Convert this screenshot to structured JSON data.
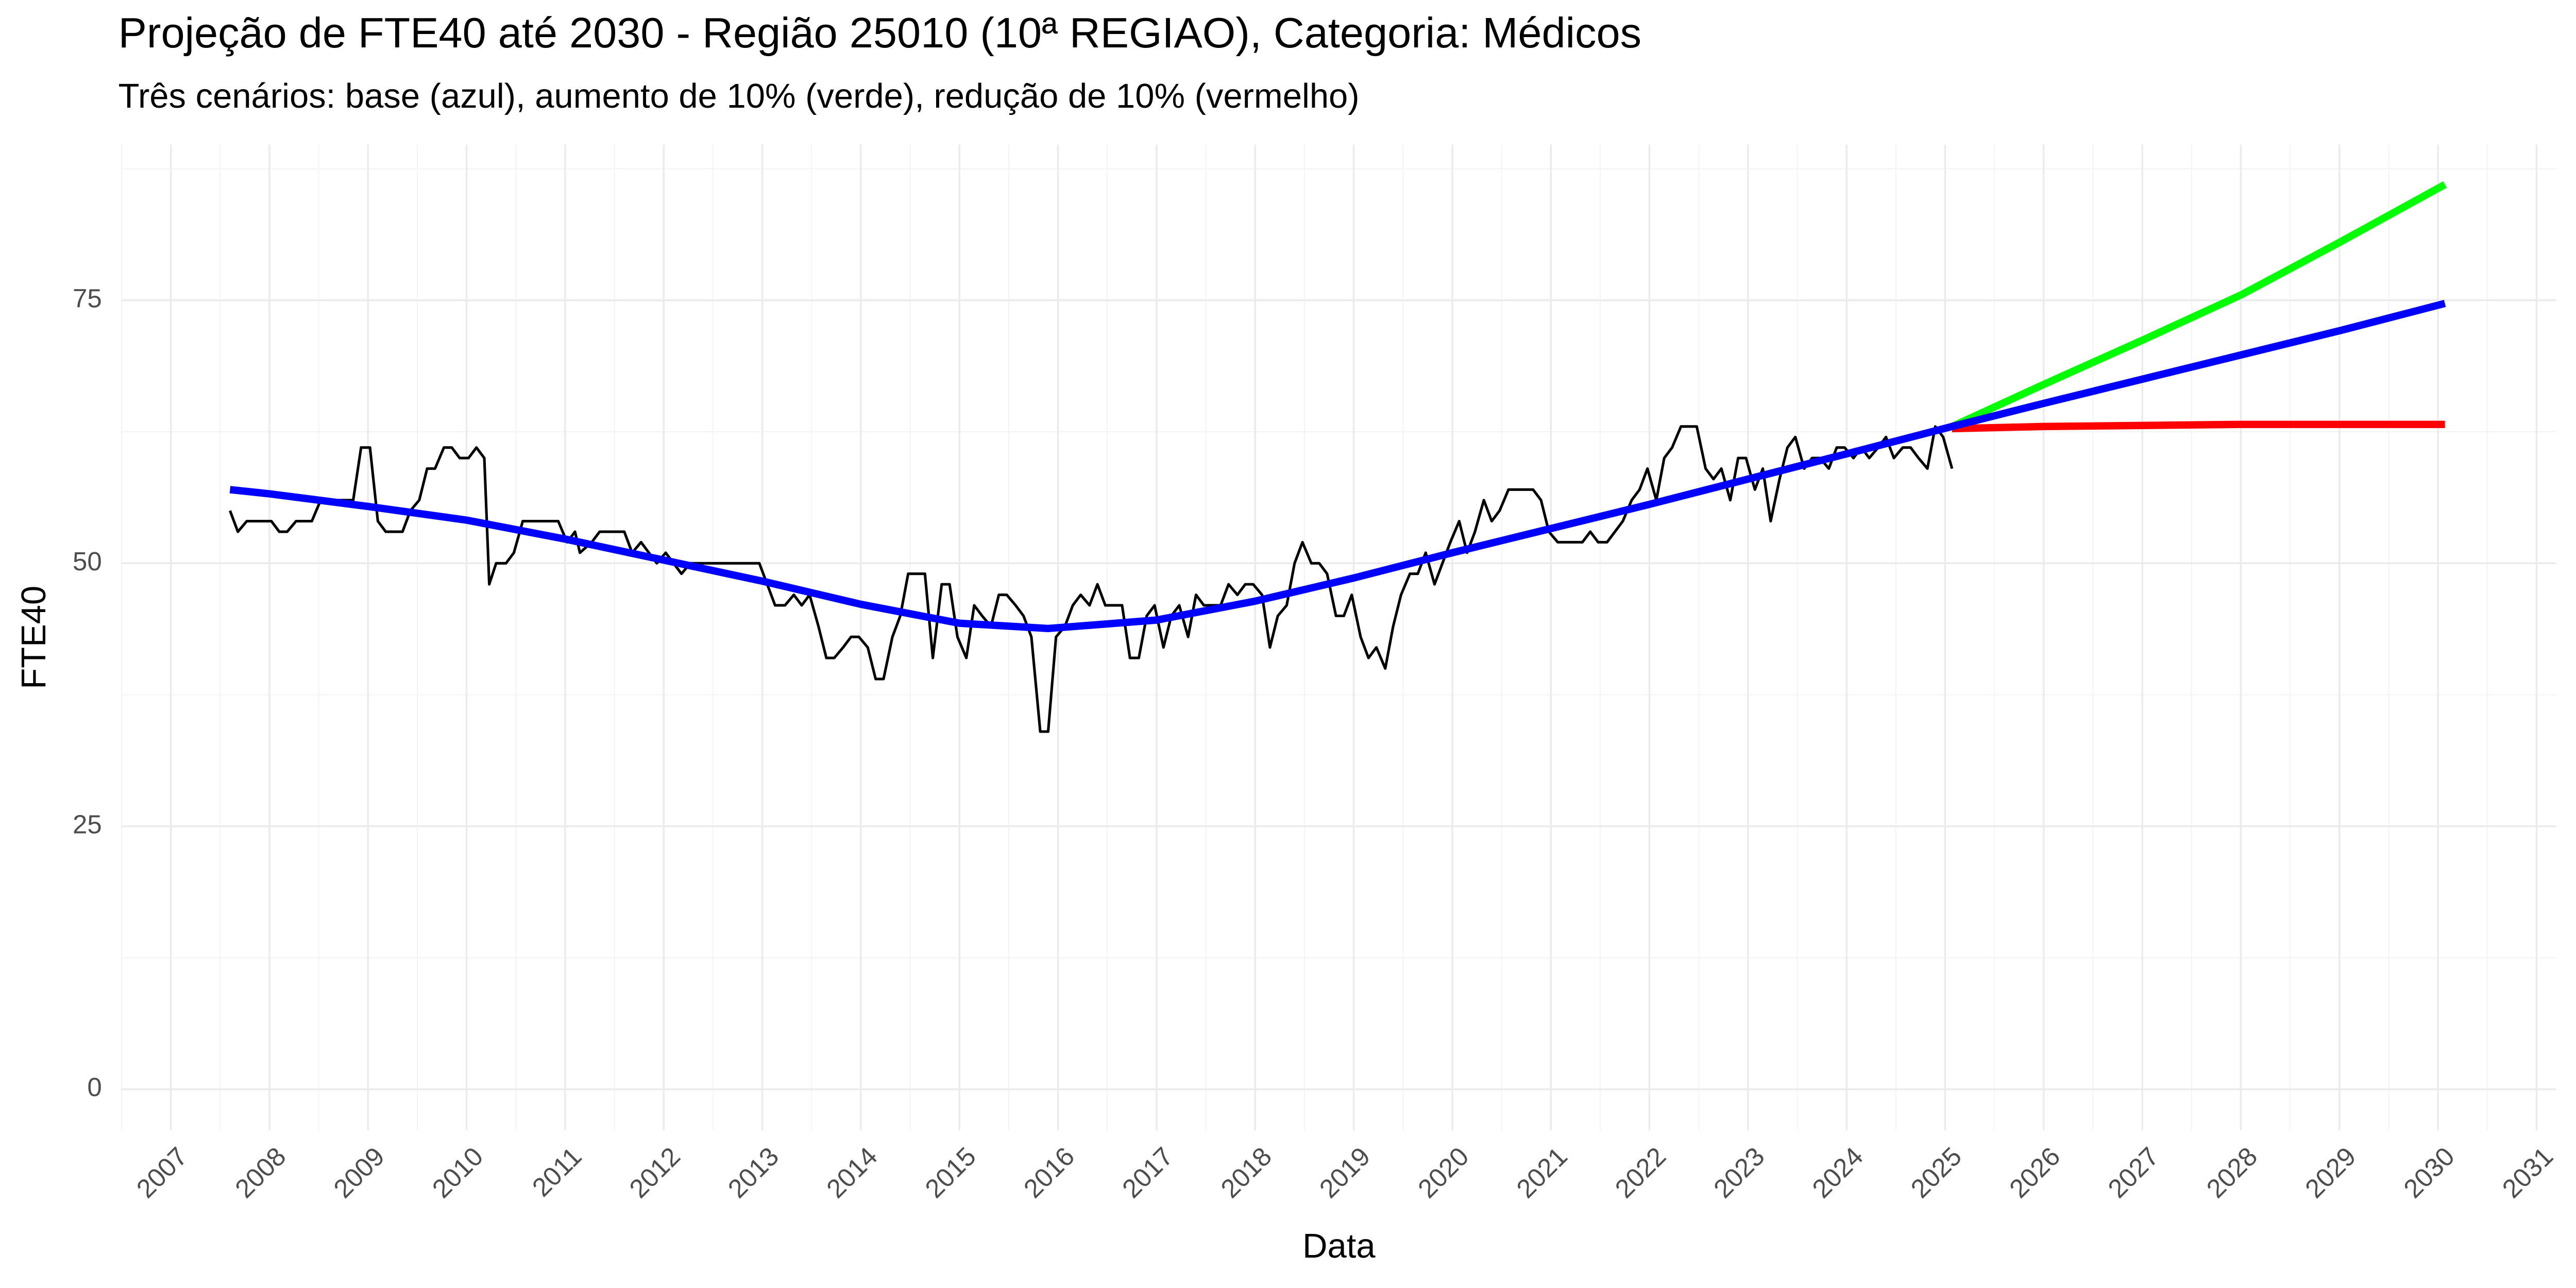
{
  "chart_data": {
    "type": "line",
    "title": "Projeção de FTE40 até 2030 - Região 25010 (10ª REGIAO), Categoria: Médicos",
    "subtitle": "Três cenários: base (azul), aumento de 10% (verde), redução de 10% (vermelho)",
    "x_label": "Data",
    "y_label": "FTE40",
    "xlim": [
      2006.5,
      2031.2
    ],
    "xticks": [
      2007,
      2008,
      2009,
      2010,
      2011,
      2012,
      2013,
      2014,
      2015,
      2016,
      2017,
      2018,
      2019,
      2020,
      2021,
      2022,
      2023,
      2024,
      2025,
      2026,
      2027,
      2028,
      2029,
      2030,
      2031
    ],
    "ylim": [
      -3.9,
      89.8
    ],
    "yticks": [
      0,
      25,
      50,
      75
    ],
    "grid": true,
    "series": [
      {
        "color": "#000000",
        "x": [
          2007.6,
          2007.68,
          2007.77,
          2007.85,
          2008.02,
          2008.1,
          2008.18,
          2008.27,
          2008.43,
          2008.52,
          2008.68,
          2008.85,
          2008.93,
          2009.02,
          2009.1,
          2009.18,
          2009.35,
          2009.43,
          2009.52,
          2009.6,
          2009.68,
          2009.77,
          2009.85,
          2009.93,
          2010.02,
          2010.1,
          2010.18,
          2010.23,
          2010.3,
          2010.4,
          2010.48,
          2010.57,
          2010.93,
          2011.02,
          2011.1,
          2011.15,
          2011.27,
          2011.35,
          2011.6,
          2011.68,
          2011.77,
          2011.85,
          2011.93,
          2012.02,
          2012.1,
          2012.18,
          2012.27,
          2012.97,
          2013.05,
          2013.13,
          2013.23,
          2013.32,
          2013.4,
          2013.48,
          2013.57,
          2013.65,
          2013.73,
          2013.82,
          2013.9,
          2013.98,
          2014.07,
          2014.15,
          2014.23,
          2014.32,
          2014.4,
          2014.48,
          2014.65,
          2014.73,
          2014.82,
          2014.9,
          2014.98,
          2015.07,
          2015.15,
          2015.23,
          2015.32,
          2015.4,
          2015.48,
          2015.57,
          2015.65,
          2015.73,
          2015.82,
          2015.9,
          2015.98,
          2016.07,
          2016.15,
          2016.23,
          2016.32,
          2016.4,
          2016.48,
          2016.65,
          2016.73,
          2016.82,
          2016.9,
          2016.98,
          2017.07,
          2017.15,
          2017.23,
          2017.32,
          2017.4,
          2017.48,
          2017.57,
          2017.65,
          2017.73,
          2017.82,
          2017.9,
          2017.98,
          2018.07,
          2018.15,
          2018.23,
          2018.32,
          2018.4,
          2018.48,
          2018.57,
          2018.65,
          2018.73,
          2018.82,
          2018.9,
          2018.98,
          2019.07,
          2019.15,
          2019.23,
          2019.32,
          2019.4,
          2019.48,
          2019.57,
          2019.65,
          2019.73,
          2019.82,
          2019.9,
          2019.98,
          2020.07,
          2020.15,
          2020.23,
          2020.32,
          2020.4,
          2020.48,
          2020.57,
          2020.82,
          2020.9,
          2020.98,
          2021.07,
          2021.32,
          2021.4,
          2021.48,
          2021.57,
          2021.65,
          2021.73,
          2021.82,
          2021.9,
          2021.98,
          2022.07,
          2022.15,
          2022.23,
          2022.32,
          2022.48,
          2022.57,
          2022.65,
          2022.73,
          2022.82,
          2022.9,
          2022.98,
          2023.07,
          2023.15,
          2023.23,
          2023.32,
          2023.4,
          2023.48,
          2023.57,
          2023.65,
          2023.73,
          2023.82,
          2023.9,
          2023.98,
          2024.07,
          2024.15,
          2024.23,
          2024.32,
          2024.4,
          2024.48,
          2024.57,
          2024.65,
          2024.73,
          2024.82,
          2024.9,
          2024.98,
          2025.07
        ],
        "values": [
          55,
          53,
          54,
          54,
          54,
          53,
          53,
          54,
          54,
          56,
          56,
          56,
          61,
          61,
          54,
          53,
          53,
          55,
          56,
          59,
          59,
          61,
          61,
          60,
          60,
          61,
          60,
          48,
          50,
          50,
          51,
          54,
          54,
          52,
          53,
          51,
          52,
          53,
          53,
          51,
          52,
          51,
          50,
          51,
          50,
          49,
          50,
          50,
          48,
          46,
          46,
          47,
          46,
          47,
          44,
          41,
          41,
          42,
          43,
          43,
          42,
          39,
          39,
          43,
          45,
          49,
          49,
          41,
          48,
          48,
          43,
          41,
          46,
          45,
          44,
          47,
          47,
          46,
          45,
          43,
          34,
          34,
          43,
          44,
          46,
          47,
          46,
          48,
          46,
          46,
          41,
          41,
          45,
          46,
          42,
          45,
          46,
          43,
          47,
          46,
          46,
          46,
          48,
          47,
          48,
          48,
          47,
          42,
          45,
          46,
          50,
          52,
          50,
          50,
          49,
          45,
          45,
          47,
          43,
          41,
          42,
          40,
          44,
          47,
          49,
          49,
          51,
          48,
          50,
          52,
          54,
          51,
          53,
          56,
          54,
          55,
          57,
          57,
          56,
          53,
          52,
          52,
          53,
          52,
          52,
          53,
          54,
          56,
          57,
          59,
          56,
          60,
          61,
          63,
          63,
          59,
          58,
          59,
          56,
          60,
          60,
          57,
          59,
          54,
          58,
          61,
          62,
          59,
          60,
          60,
          59,
          61,
          61,
          60,
          61,
          60,
          61,
          62,
          60,
          61,
          61,
          60,
          59,
          63,
          62,
          59
        ]
      },
      {
        "color": "#ff0000",
        "x": [
          2025.07,
          2026,
          2027,
          2028,
          2029,
          2030.07
        ],
        "values": [
          62.8,
          63,
          63.1,
          63.2,
          63.2,
          63.2
        ]
      },
      {
        "color": "#00ff00",
        "x": [
          2025.07,
          2026,
          2027,
          2028,
          2029,
          2030.07
        ],
        "values": [
          63,
          67,
          71.2,
          75.5,
          80.5,
          86
        ]
      },
      {
        "color": "#0000ff",
        "x": [
          2007.6,
          2008,
          2009,
          2010,
          2011,
          2012,
          2013,
          2014,
          2015,
          2015.9,
          2017,
          2018,
          2019,
          2020,
          2021,
          2022,
          2023,
          2024,
          2025.07,
          2026,
          2027,
          2028,
          2029,
          2030.07
        ],
        "values": [
          57,
          56.6,
          55.4,
          54.1,
          52.3,
          50.3,
          48.3,
          46.1,
          44.3,
          43.8,
          44.6,
          46.4,
          48.6,
          51,
          53.3,
          55.6,
          58,
          60.4,
          63,
          65.2,
          67.5,
          69.8,
          72.1,
          74.7
        ]
      }
    ]
  }
}
